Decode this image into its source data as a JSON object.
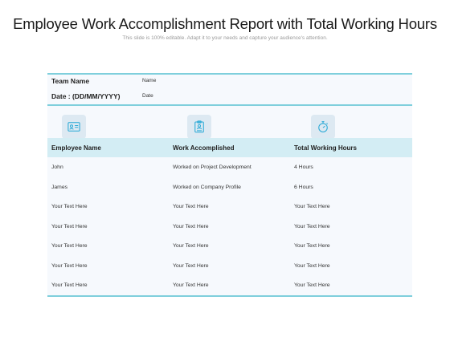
{
  "slide": {
    "title": "Employee Work Accomplishment Report with Total Working Hours",
    "subtitle": "This slide is 100% editable. Adapt it to your needs and capture your audience's attention."
  },
  "meta": [
    {
      "label": "Team Name",
      "value": "Name"
    },
    {
      "label": "Date : (DD/MM/YYYY)",
      "value": "Date"
    }
  ],
  "icons": [
    "id-card-icon",
    "clipboard-icon",
    "stopwatch-icon"
  ],
  "colors": {
    "accent": "#7fcfdc",
    "header_band": "#d3edf4",
    "icon_tile": "#dde9f2",
    "icon_stroke": "#29a9d6",
    "panel": "#f6f9fd"
  },
  "table": {
    "headers": [
      "Employee Name",
      "Work Accomplished",
      "Total Working Hours"
    ],
    "rows": [
      [
        "John",
        "Worked on Project Development",
        "4 Hours"
      ],
      [
        "James",
        "Worked on Company Profile",
        "6 Hours"
      ],
      [
        "Your Text Here",
        "Your Text Here",
        "Your Text Here"
      ],
      [
        "Your Text Here",
        "Your Text Here",
        "Your Text Here"
      ],
      [
        "Your Text Here",
        "Your Text Here",
        "Your Text Here"
      ],
      [
        "Your Text Here",
        "Your Text Here",
        "Your Text Here"
      ],
      [
        "Your Text Here",
        "Your Text Here",
        "Your Text Here"
      ]
    ]
  }
}
